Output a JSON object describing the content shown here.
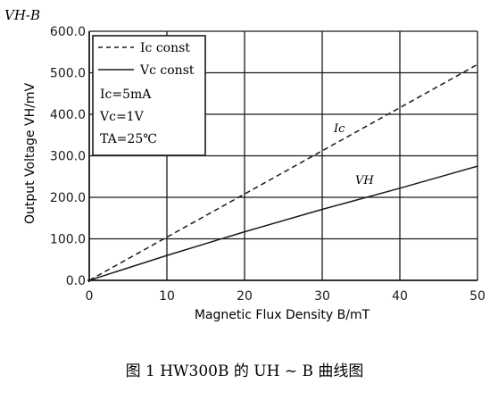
{
  "chart_data": {
    "type": "line",
    "corner_label": "VH-B",
    "xlabel": "Magnetic Flux Density B/mT",
    "ylabel": "Output Voltage VH/mV",
    "xlim": [
      0,
      50
    ],
    "ylim": [
      0,
      600
    ],
    "x_ticks": [
      "0",
      "10",
      "20",
      "30",
      "40",
      "50"
    ],
    "y_ticks": [
      "0.0",
      "100.0",
      "200.0",
      "300.0",
      "400.0",
      "500.0",
      "600.0"
    ],
    "x_tick_values": [
      0,
      10,
      20,
      30,
      40,
      50
    ],
    "y_tick_values": [
      0,
      100,
      200,
      300,
      400,
      500,
      600
    ],
    "grid": "both",
    "legend_position": "top-left",
    "legend": {
      "entries": [
        "Ic const",
        "Vc const"
      ],
      "conditions": [
        "Ic=5mA",
        "Vc=1V",
        "TA=25℃"
      ]
    },
    "series": [
      {
        "name": "Ic const",
        "label": "Ic",
        "style": "dashed",
        "x": [
          0,
          10,
          20,
          30,
          40,
          50
        ],
        "y": [
          0,
          104,
          208,
          312,
          416,
          520
        ]
      },
      {
        "name": "Vc const",
        "label": "VH",
        "style": "solid",
        "x": [
          0,
          10,
          20,
          30,
          40,
          50
        ],
        "y": [
          0,
          60,
          117,
          171,
          222,
          275
        ]
      }
    ],
    "caption": "图 1    HW300B 的 UH ~ B 曲线图",
    "colors": {
      "line": "#1a1a1a",
      "grid": "#1a1a1a",
      "background": "#ffffff"
    }
  }
}
